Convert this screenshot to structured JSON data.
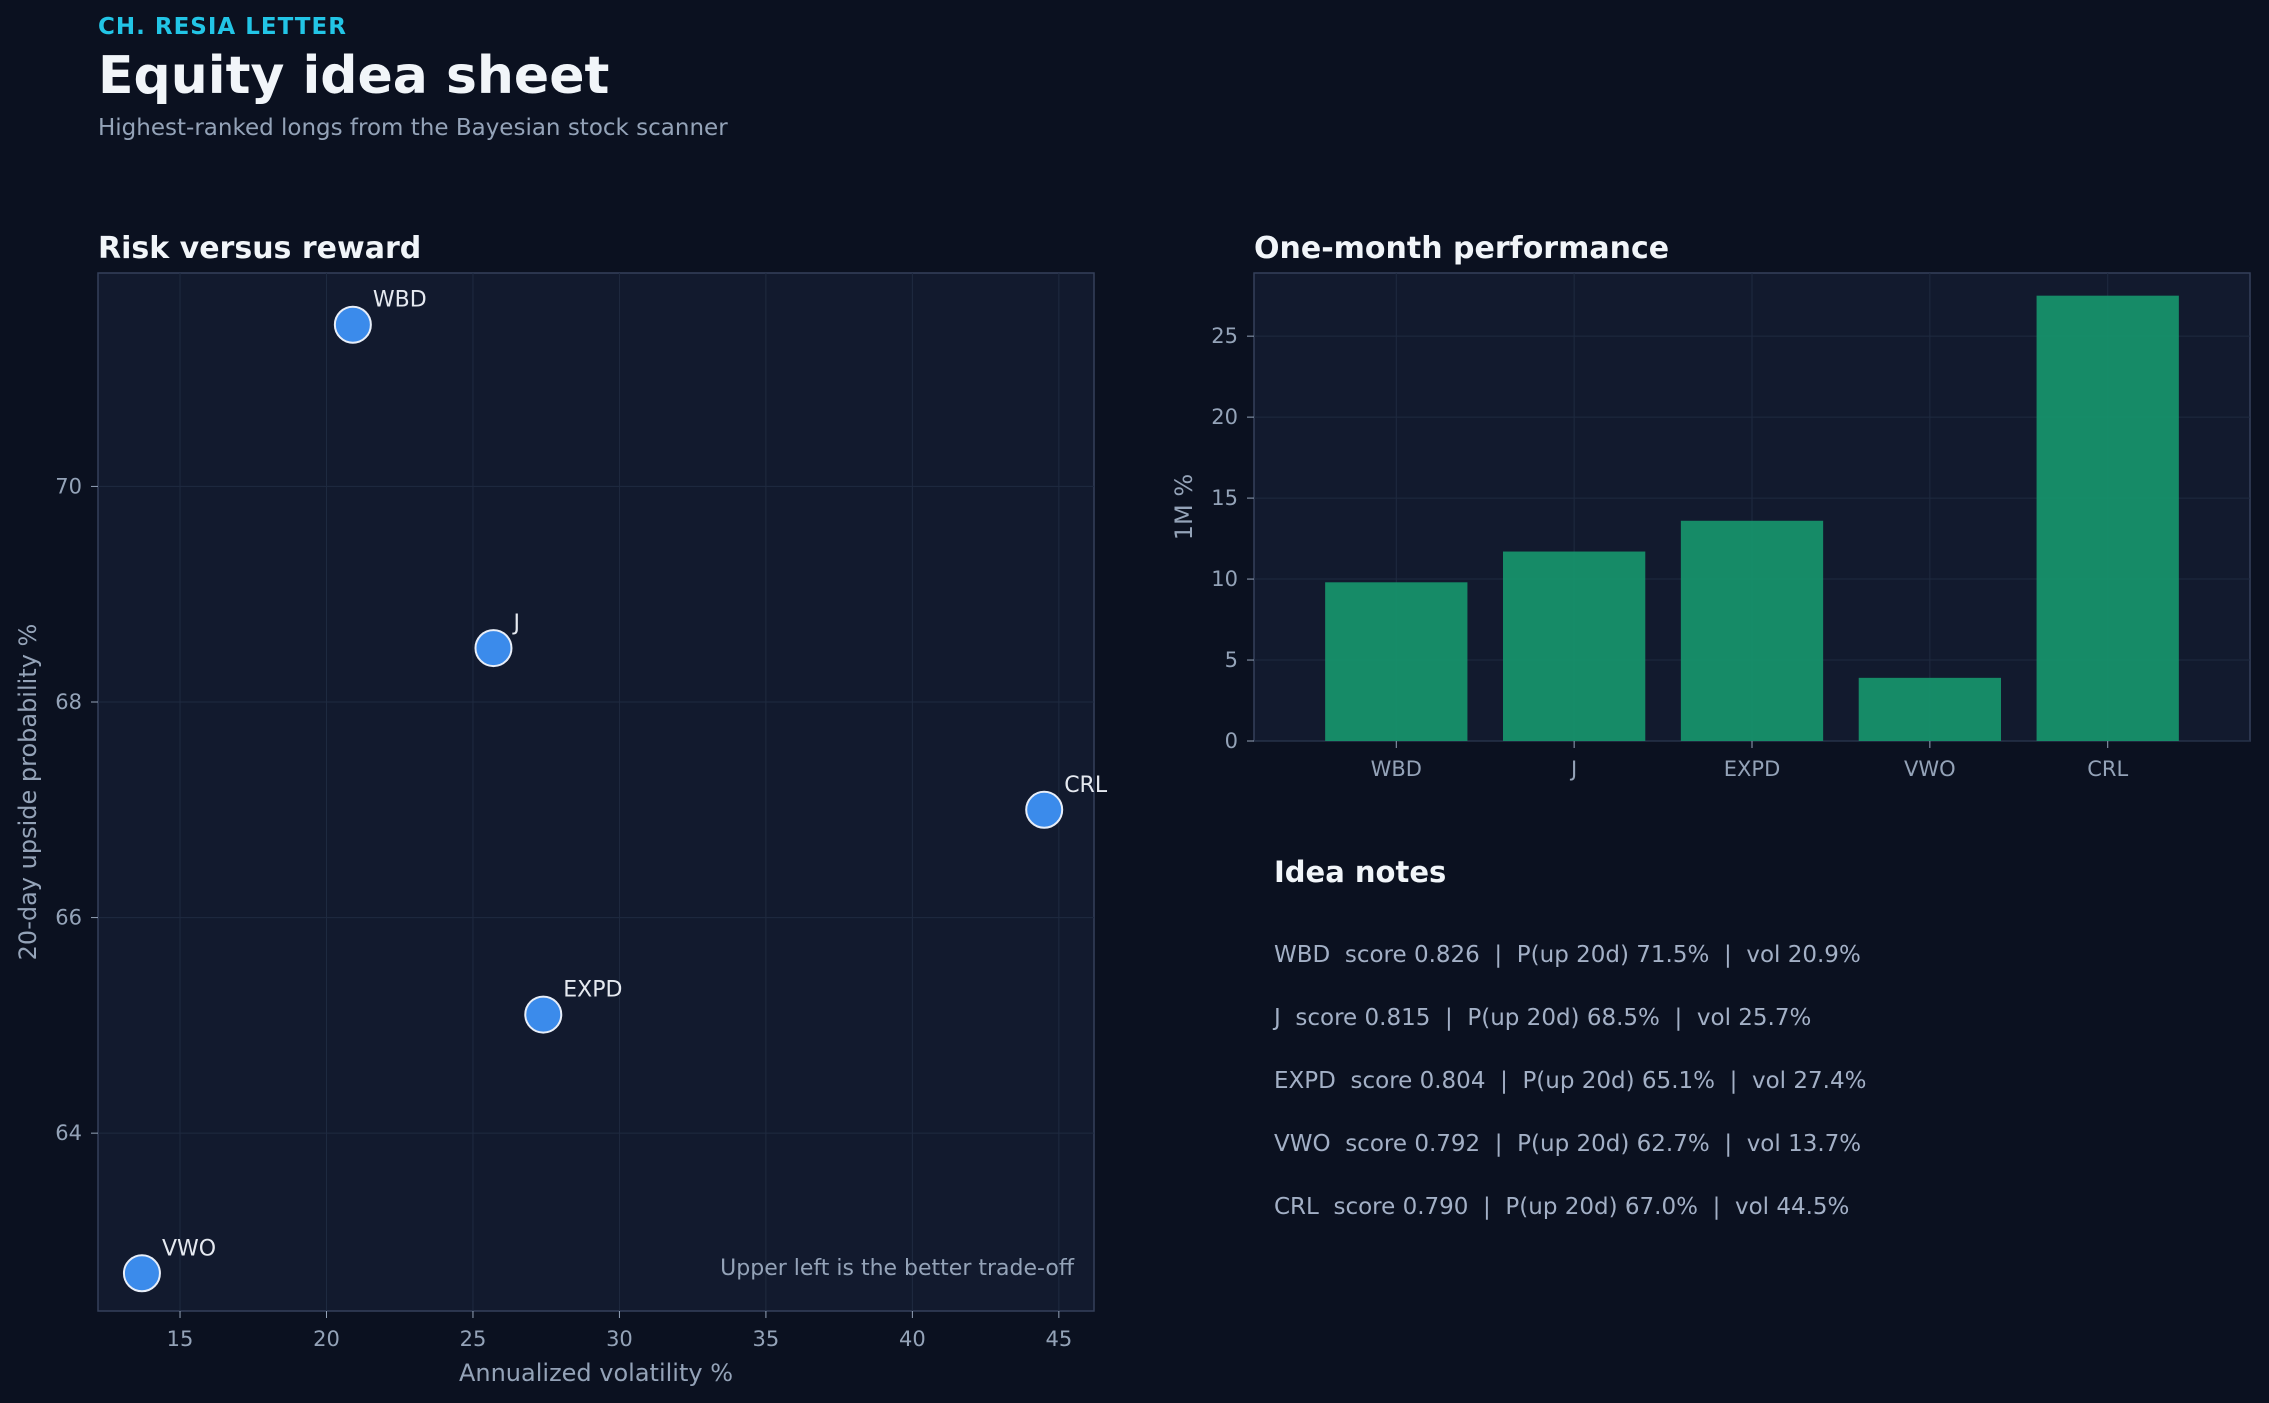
{
  "header": {
    "kicker": "CH. RESIA LETTER",
    "title": "Equity idea sheet",
    "subtitle": "Highest-ranked longs from the Bayesian stock scanner"
  },
  "panels": {
    "scatter_title": "Risk versus reward",
    "bar_title": "One-month performance"
  },
  "notes": {
    "title": "Idea notes",
    "items": [
      "WBD  score 0.826  |  P(up 20d) 71.5%  |  vol 20.9%",
      "J  score 0.815  |  P(up 20d) 68.5%  |  vol 25.7%",
      "EXPD  score 0.804  |  P(up 20d) 65.1%  |  vol 27.4%",
      "VWO  score 0.792  |  P(up 20d) 62.7%  |  vol 13.7%",
      "CRL  score 0.790  |  P(up 20d) 67.0%  |  vol 44.5%"
    ]
  },
  "colors": {
    "background": "#0b1120",
    "plot_bg": "#121a2e",
    "point": "#3b8beb",
    "bar": "#17956d",
    "accent": "#22c5e6"
  },
  "chart_data": [
    {
      "type": "scatter",
      "title": "Risk versus reward",
      "xlabel": "Annualized volatility %",
      "ylabel": "20-day upside probability %",
      "xlim": [
        12.2,
        46.2
      ],
      "ylim": [
        62.35,
        71.98
      ],
      "xticks": [
        15,
        20,
        25,
        30,
        35,
        40,
        45
      ],
      "yticks": [
        64,
        66,
        68,
        70
      ],
      "grid": true,
      "annotation": "Upper left is the better trade-off",
      "points": [
        {
          "label": "WBD",
          "x": 20.9,
          "y": 71.5
        },
        {
          "label": "J",
          "x": 25.7,
          "y": 68.5
        },
        {
          "label": "EXPD",
          "x": 27.4,
          "y": 65.1
        },
        {
          "label": "VWO",
          "x": 13.7,
          "y": 62.7
        },
        {
          "label": "CRL",
          "x": 44.5,
          "y": 67.0
        }
      ]
    },
    {
      "type": "bar",
      "title": "One-month performance",
      "xlabel": "",
      "ylabel": "1M %",
      "categories": [
        "WBD",
        "J",
        "EXPD",
        "VWO",
        "CRL"
      ],
      "values": [
        9.8,
        11.7,
        13.6,
        3.9,
        27.5
      ],
      "ylim": [
        0,
        28.9
      ],
      "yticks": [
        0,
        5,
        10,
        15,
        20,
        25
      ],
      "grid": true
    }
  ]
}
